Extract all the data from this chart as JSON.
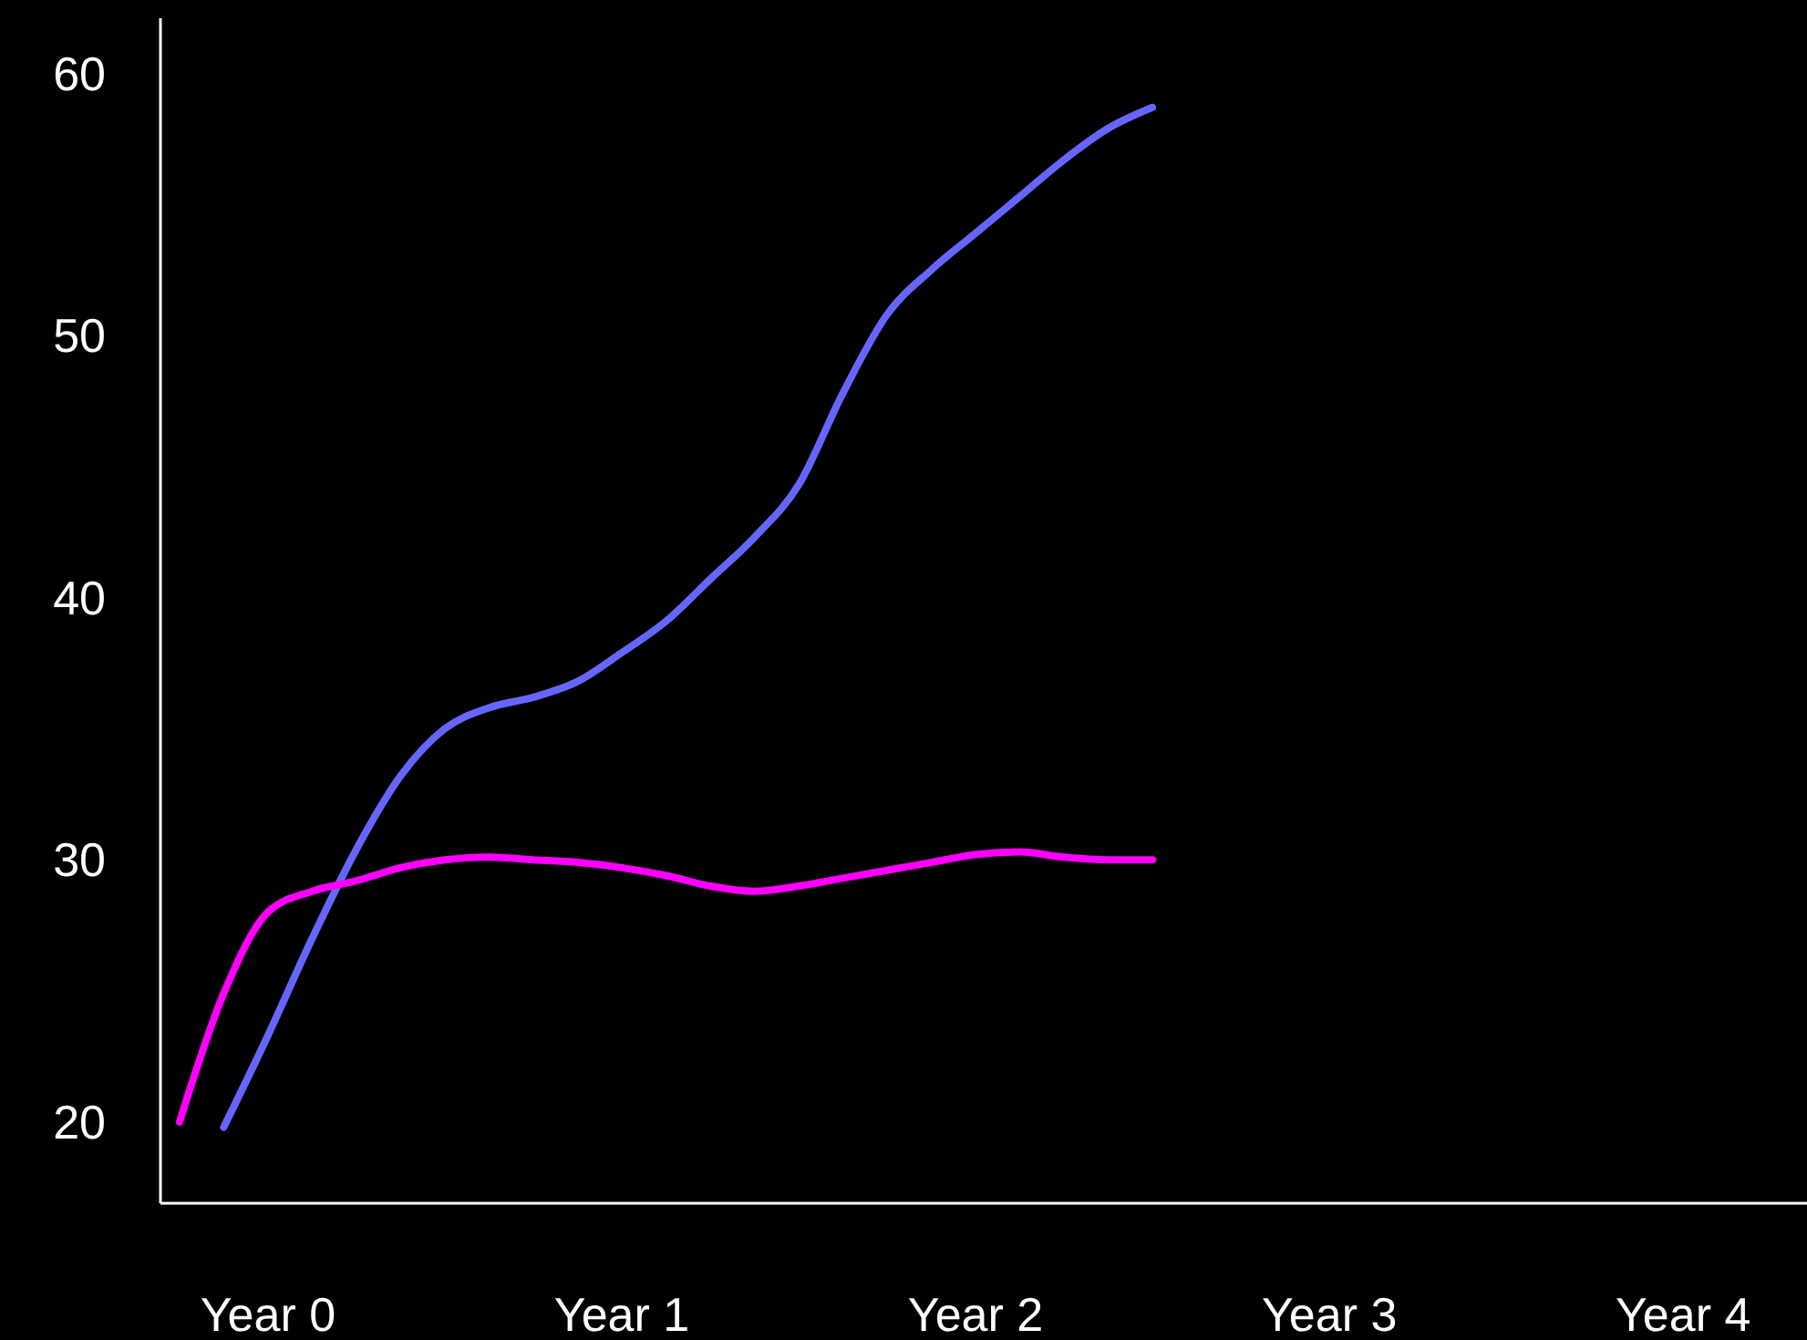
{
  "chart_data": {
    "type": "line",
    "ylim": [
      16.9,
      62.1
    ],
    "categories": [
      null,
      null,
      "Year 0",
      null,
      null,
      null,
      null,
      null,
      null,
      null,
      "Year 1",
      null,
      null,
      null,
      null,
      null,
      null,
      null,
      "Year 2",
      null,
      null,
      null,
      null,
      null,
      null,
      null,
      "Year 3",
      null,
      null,
      null,
      null,
      null,
      null,
      null,
      "Year 4",
      null,
      null
    ],
    "yticks": [
      20,
      30,
      40,
      50,
      60
    ],
    "grid": false,
    "marker": "none",
    "line_style": "solid",
    "series": [
      {
        "color": "#6666ff",
        "values": [
          null,
          19.8,
          23.3,
          27.0,
          30.4,
          33.2,
          35.0,
          35.8,
          36.2,
          36.8,
          37.9,
          39.1,
          40.7,
          42.3,
          44.3,
          47.8,
          50.8,
          52.5,
          53.9,
          55.3,
          56.7,
          57.9,
          58.7,
          null,
          null,
          null,
          null,
          null,
          null,
          null,
          null,
          null,
          null,
          null,
          null,
          null,
          null
        ]
      },
      {
        "color": "#ff00ff",
        "values": [
          20.0,
          24.9,
          28.0,
          28.8,
          29.2,
          29.7,
          30.0,
          30.1,
          30.0,
          29.9,
          29.7,
          29.4,
          29.0,
          28.8,
          29.0,
          29.3,
          29.6,
          29.9,
          30.2,
          30.3,
          30.1,
          30.0,
          30.0,
          null,
          null,
          null,
          null,
          null,
          null,
          null,
          null,
          null,
          null,
          null,
          null,
          null,
          null
        ]
      }
    ]
  }
}
